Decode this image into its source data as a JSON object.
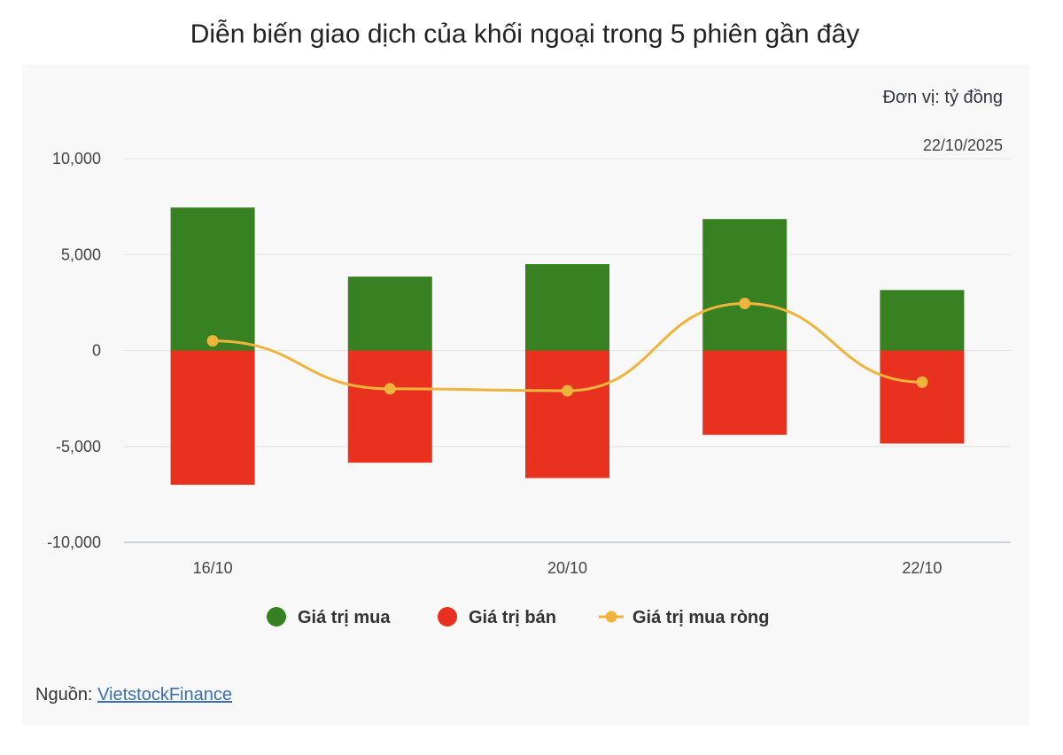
{
  "title": "Diễn biến giao dịch của khối ngoại trong 5 phiên gần đây",
  "unit_label": "Đơn vị: tỷ đồng",
  "date_label": "22/10/2025",
  "source": {
    "prefix": "Nguồn: ",
    "link_text": "VietstockFinance"
  },
  "colors": {
    "buy": "#388122",
    "sell": "#e8321f",
    "net": "#f0b43c"
  },
  "chart_data": {
    "type": "bar",
    "categories": [
      "16/10",
      "",
      "20/10",
      "",
      "22/10"
    ],
    "x_tick_labels": [
      "16/10",
      "20/10",
      "22/10"
    ],
    "ylim": [
      -10000,
      10000
    ],
    "yticks": [
      "10,000",
      "5,000",
      "0",
      "-5,000",
      "-10,000"
    ],
    "grid": true,
    "legend_position": "bottom",
    "series": [
      {
        "name": "Giá trị mua",
        "type": "bar",
        "values": [
          7450,
          3850,
          4500,
          6850,
          3150
        ]
      },
      {
        "name": "Giá trị bán",
        "type": "bar",
        "values": [
          -7000,
          -5850,
          -6650,
          -4400,
          -4850
        ]
      },
      {
        "name": "Giá trị mua ròng",
        "type": "line",
        "values": [
          500,
          -2000,
          -2100,
          2450,
          -1650
        ]
      }
    ]
  }
}
